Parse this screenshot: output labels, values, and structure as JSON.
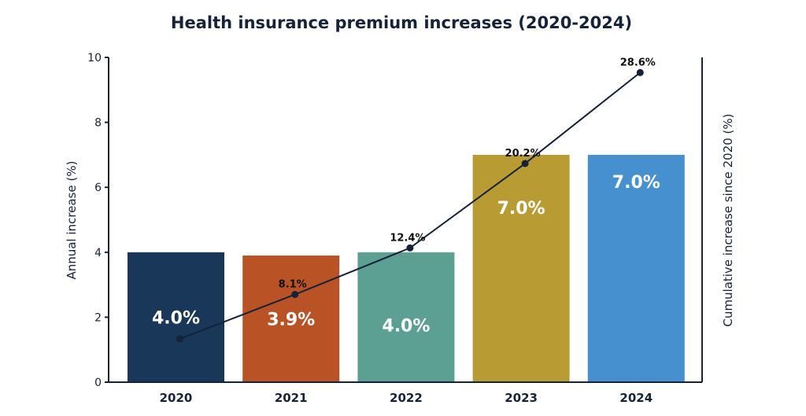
{
  "chart_data": {
    "type": "bar",
    "title": "Health insurance premium increases (2020-2024)",
    "categories": [
      "2020",
      "2021",
      "2022",
      "2023",
      "2024"
    ],
    "series": [
      {
        "name": "Annual increase (%)",
        "type": "bar",
        "values": [
          4.0,
          3.9,
          4.0,
          7.0,
          7.0
        ],
        "labels": [
          "4.0%",
          "3.9%",
          "4.0%",
          "7.0%",
          "7.0%"
        ],
        "colors": [
          "#183759",
          "#b95225",
          "#5ba093",
          "#b89c33",
          "#4690cf"
        ]
      },
      {
        "name": "Cumulative increase since 2020 (%)",
        "type": "line",
        "axis": "right",
        "values": [
          4.0,
          8.1,
          12.4,
          20.2,
          28.6
        ],
        "labels": [
          "",
          "8.1%",
          "12.4%",
          "20.2%",
          "28.6%"
        ],
        "color": "#14223a"
      }
    ],
    "ylabel": "Annual increase (%)",
    "y2label": "Cumulative increase since 2020 (%)",
    "ylim": [
      0,
      10
    ],
    "yticks": [
      "0",
      "2",
      "4",
      "6",
      "8",
      "10"
    ],
    "y2lim": [
      0,
      30
    ],
    "grid": false
  }
}
